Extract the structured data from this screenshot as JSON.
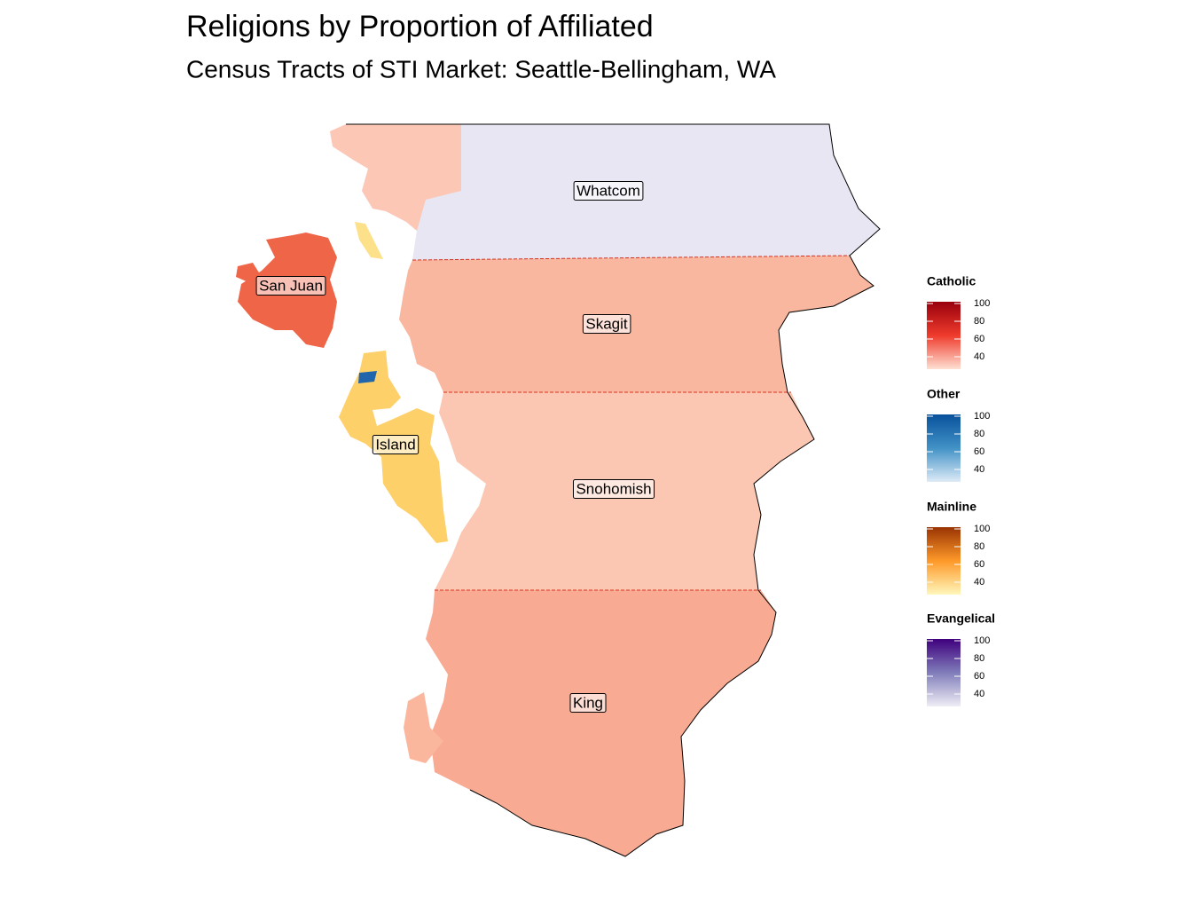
{
  "title": "Religions by Proportion of Affiliated",
  "subtitle": "Census Tracts of STI Market: Seattle-Bellingham, WA",
  "counties": [
    {
      "label": "Whatcom"
    },
    {
      "label": "San Juan"
    },
    {
      "label": "Skagit"
    },
    {
      "label": "Island"
    },
    {
      "label": "Snohomish"
    },
    {
      "label": "King"
    }
  ],
  "legends": [
    {
      "title": "Catholic",
      "lim": [
        26,
        102
      ],
      "ticks": [
        40,
        60,
        80,
        100
      ],
      "colors": [
        "#fee0d2",
        "#ef3b2c",
        "#99000d"
      ]
    },
    {
      "title": "Other",
      "lim": [
        26,
        102
      ],
      "ticks": [
        40,
        60,
        80,
        100
      ],
      "colors": [
        "#deebf7",
        "#4292c6",
        "#08519c"
      ]
    },
    {
      "title": "Mainline",
      "lim": [
        26,
        102
      ],
      "ticks": [
        40,
        60,
        80,
        100
      ],
      "colors": [
        "#fff7bc",
        "#fe9929",
        "#993404"
      ]
    },
    {
      "title": "Evangelical",
      "lim": [
        26,
        102
      ],
      "ticks": [
        40,
        60,
        80,
        100
      ],
      "colors": [
        "#efedf5",
        "#807dba",
        "#3f007d"
      ]
    }
  ]
}
